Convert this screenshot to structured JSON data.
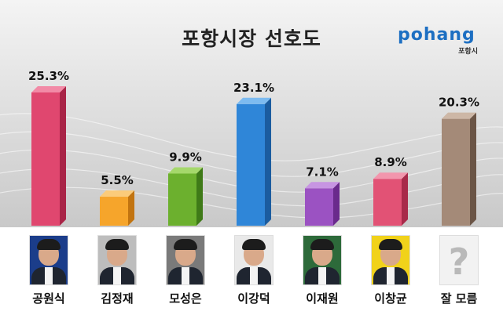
{
  "header": {
    "title": "포항시장 선호도",
    "logo_word": "pohang",
    "logo_sub": "포항시"
  },
  "chart_data": {
    "type": "bar",
    "title": "포항시장 선호도",
    "categories": [
      "공원식",
      "김정재",
      "모성은",
      "이강덕",
      "이재원",
      "이창균",
      "잘 모름"
    ],
    "values": [
      25.3,
      5.5,
      9.9,
      23.1,
      7.1,
      8.9,
      20.3
    ],
    "labels": [
      "25.3%",
      "5.5%",
      "9.9%",
      "23.1%",
      "7.1%",
      "8.9%",
      "20.3%"
    ],
    "ylim": [
      0,
      30
    ],
    "grid": false,
    "colors": [
      "#e0476f",
      "#f6a52b",
      "#6cb02e",
      "#2f86d8",
      "#9b52c2",
      "#e25275",
      "#a48a78"
    ],
    "colors_dark": [
      "#a92447",
      "#c27410",
      "#3f7a18",
      "#1b5c9f",
      "#6a2a8c",
      "#a82a4a",
      "#6b5546"
    ],
    "colors_light": [
      "#f28aa6",
      "#fbcb7a",
      "#a5d86b",
      "#7dbbf0",
      "#c795e2",
      "#f296ad",
      "#cdb7a6"
    ]
  },
  "candidates": [
    {
      "name": "공원식",
      "photo": "candidate-photo",
      "bg": "#1b3d8a"
    },
    {
      "name": "김정재",
      "photo": "candidate-photo",
      "bg": "#bdbdbd"
    },
    {
      "name": "모성은",
      "photo": "candidate-photo",
      "bg": "#7a7a7a"
    },
    {
      "name": "이강덕",
      "photo": "candidate-photo",
      "bg": "#e9e9e9"
    },
    {
      "name": "이재원",
      "photo": "candidate-photo",
      "bg": "#2d6a3a"
    },
    {
      "name": "이창균",
      "photo": "candidate-photo",
      "bg": "#f1d21a"
    },
    {
      "name": "잘 모름",
      "photo": "unknown-icon",
      "bg": "#f2f2f2"
    }
  ]
}
